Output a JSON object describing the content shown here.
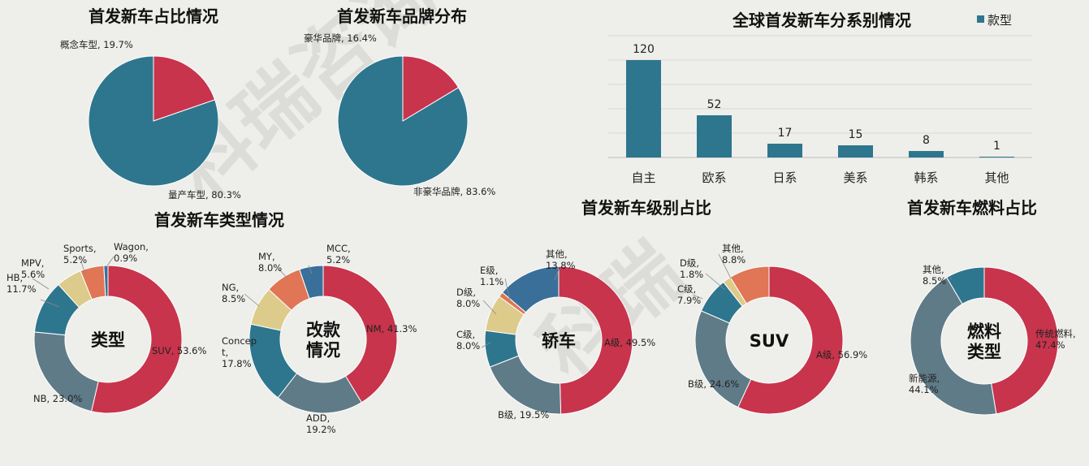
{
  "colors": {
    "background": "#eeeeea",
    "teal": "#2e768e",
    "red": "#c7344c",
    "gray": "#5f7b88",
    "blue": "#3a6f9a",
    "beige": "#dccb8a",
    "orange": "#e07655",
    "lightblue": "#4f89a9",
    "grid": "#d8d8d8",
    "axis": "#bfbfbf"
  },
  "watermark": {
    "text1": "科瑞咨询",
    "text2": "科瑞"
  },
  "chart_data": [
    {
      "id": "concept",
      "type": "pie",
      "title": "首发新车占比情况",
      "slices": [
        {
          "name": "概念车型",
          "value": 19.7,
          "label": "概念车型, 19.7%",
          "color": "#c7344c"
        },
        {
          "name": "量产车型",
          "value": 80.3,
          "label": "量产车型, 80.3%",
          "color": "#2e768e"
        }
      ]
    },
    {
      "id": "brand",
      "type": "pie",
      "title": "首发新车品牌分布",
      "slices": [
        {
          "name": "豪华品牌",
          "value": 16.4,
          "label": "豪华品牌, 16.4%",
          "color": "#c7344c"
        },
        {
          "name": "非豪华品牌",
          "value": 83.6,
          "label": "非豪华品牌, 83.6%",
          "color": "#2e768e"
        }
      ]
    },
    {
      "id": "origin",
      "type": "bar",
      "title": "全球首发新车分系别情况",
      "legend": "款型",
      "legend_position": "top-right",
      "categories": [
        "自主",
        "欧系",
        "日系",
        "美系",
        "韩系",
        "其他"
      ],
      "series": [
        {
          "name": "款型",
          "values": [
            120,
            52,
            17,
            15,
            8,
            1
          ],
          "color": "#2e768e"
        }
      ],
      "ylim": [
        0,
        150
      ],
      "grid": true
    },
    {
      "id": "type",
      "type": "donut",
      "group_title": "首发新车类型情况",
      "center": [
        "类型"
      ],
      "slices": [
        {
          "name": "SUV",
          "value": 53.6,
          "label": [
            "SUV, 53.6%"
          ],
          "color": "#c7344c"
        },
        {
          "name": "NB",
          "value": 23.0,
          "label": [
            "NB, 23.0%"
          ],
          "color": "#5f7b88"
        },
        {
          "name": "HB",
          "value": 11.7,
          "label": [
            "HB,",
            "11.7%"
          ],
          "color": "#2e768e"
        },
        {
          "name": "MPV",
          "value": 5.6,
          "label": [
            "MPV,",
            "5.6%"
          ],
          "color": "#dccb8a"
        },
        {
          "name": "Sports",
          "value": 5.2,
          "label": [
            "Sports,",
            "5.2%"
          ],
          "color": "#e07655"
        },
        {
          "name": "Wagon",
          "value": 0.9,
          "label": [
            "Wagon,",
            "0.9%"
          ],
          "color": "#3a6f9a"
        }
      ]
    },
    {
      "id": "facelift",
      "type": "donut",
      "center": [
        "改款",
        "情况"
      ],
      "slices": [
        {
          "name": "NM",
          "value": 41.3,
          "label": [
            "NM, 41.3%"
          ],
          "color": "#c7344c"
        },
        {
          "name": "ADD",
          "value": 19.2,
          "label": [
            "ADD,",
            "19.2%"
          ],
          "color": "#5f7b88"
        },
        {
          "name": "Concept",
          "value": 17.8,
          "label": [
            "Concep",
            "t,",
            "17.8%"
          ],
          "color": "#2e768e"
        },
        {
          "name": "NG",
          "value": 8.5,
          "label": [
            "NG,",
            "8.5%"
          ],
          "color": "#dccb8a"
        },
        {
          "name": "MY",
          "value": 8.0,
          "label": [
            "MY,",
            "8.0%"
          ],
          "color": "#e07655"
        },
        {
          "name": "MCC",
          "value": 5.2,
          "label": [
            "MCC,",
            "5.2%"
          ],
          "color": "#3a6f9a"
        }
      ]
    },
    {
      "id": "sedan",
      "type": "donut",
      "group_title": "首发新车级别占比",
      "center": [
        "轿车"
      ],
      "slices": [
        {
          "name": "A级",
          "value": 49.5,
          "label": [
            "A级, 49.5%"
          ],
          "color": "#c7344c"
        },
        {
          "name": "B级",
          "value": 19.5,
          "label": [
            "B级, 19.5%"
          ],
          "color": "#5f7b88"
        },
        {
          "name": "C级",
          "value": 8.0,
          "label": [
            "C级,",
            "8.0%"
          ],
          "color": "#2e768e"
        },
        {
          "name": "D级",
          "value": 8.0,
          "label": [
            "D级,",
            "8.0%"
          ],
          "color": "#dccb8a"
        },
        {
          "name": "E级",
          "value": 1.1,
          "label": [
            "E级,",
            "1.1%"
          ],
          "color": "#e07655"
        },
        {
          "name": "其他",
          "value": 13.8,
          "label": [
            "其他,",
            "13.8%"
          ],
          "color": "#3a6f9a"
        }
      ]
    },
    {
      "id": "suv",
      "type": "donut",
      "center": [
        "SUV"
      ],
      "slices": [
        {
          "name": "A级",
          "value": 56.9,
          "label": [
            "A级, 56.9%"
          ],
          "color": "#c7344c"
        },
        {
          "name": "B级",
          "value": 24.6,
          "label": [
            "B级, 24.6%"
          ],
          "color": "#5f7b88"
        },
        {
          "name": "C级",
          "value": 7.9,
          "label": [
            "C级,",
            "7.9%"
          ],
          "color": "#2e768e"
        },
        {
          "name": "D级",
          "value": 1.8,
          "label": [
            "D级,",
            "1.8%"
          ],
          "color": "#dccb8a"
        },
        {
          "name": "其他",
          "value": 8.8,
          "label": [
            "其他,",
            "8.8%"
          ],
          "color": "#e07655"
        }
      ]
    },
    {
      "id": "fuel",
      "type": "donut",
      "group_title": "首发新车燃料占比",
      "center": [
        "燃料",
        "类型"
      ],
      "slices": [
        {
          "name": "传统燃料",
          "value": 47.4,
          "label": [
            "传统燃料,",
            "47.4%"
          ],
          "color": "#c7344c"
        },
        {
          "name": "新能源",
          "value": 44.1,
          "label": [
            "新能源,",
            "44.1%"
          ],
          "color": "#5f7b88"
        },
        {
          "name": "其他",
          "value": 8.5,
          "label": [
            "其他,",
            "8.5%"
          ],
          "color": "#2e768e"
        }
      ]
    }
  ]
}
